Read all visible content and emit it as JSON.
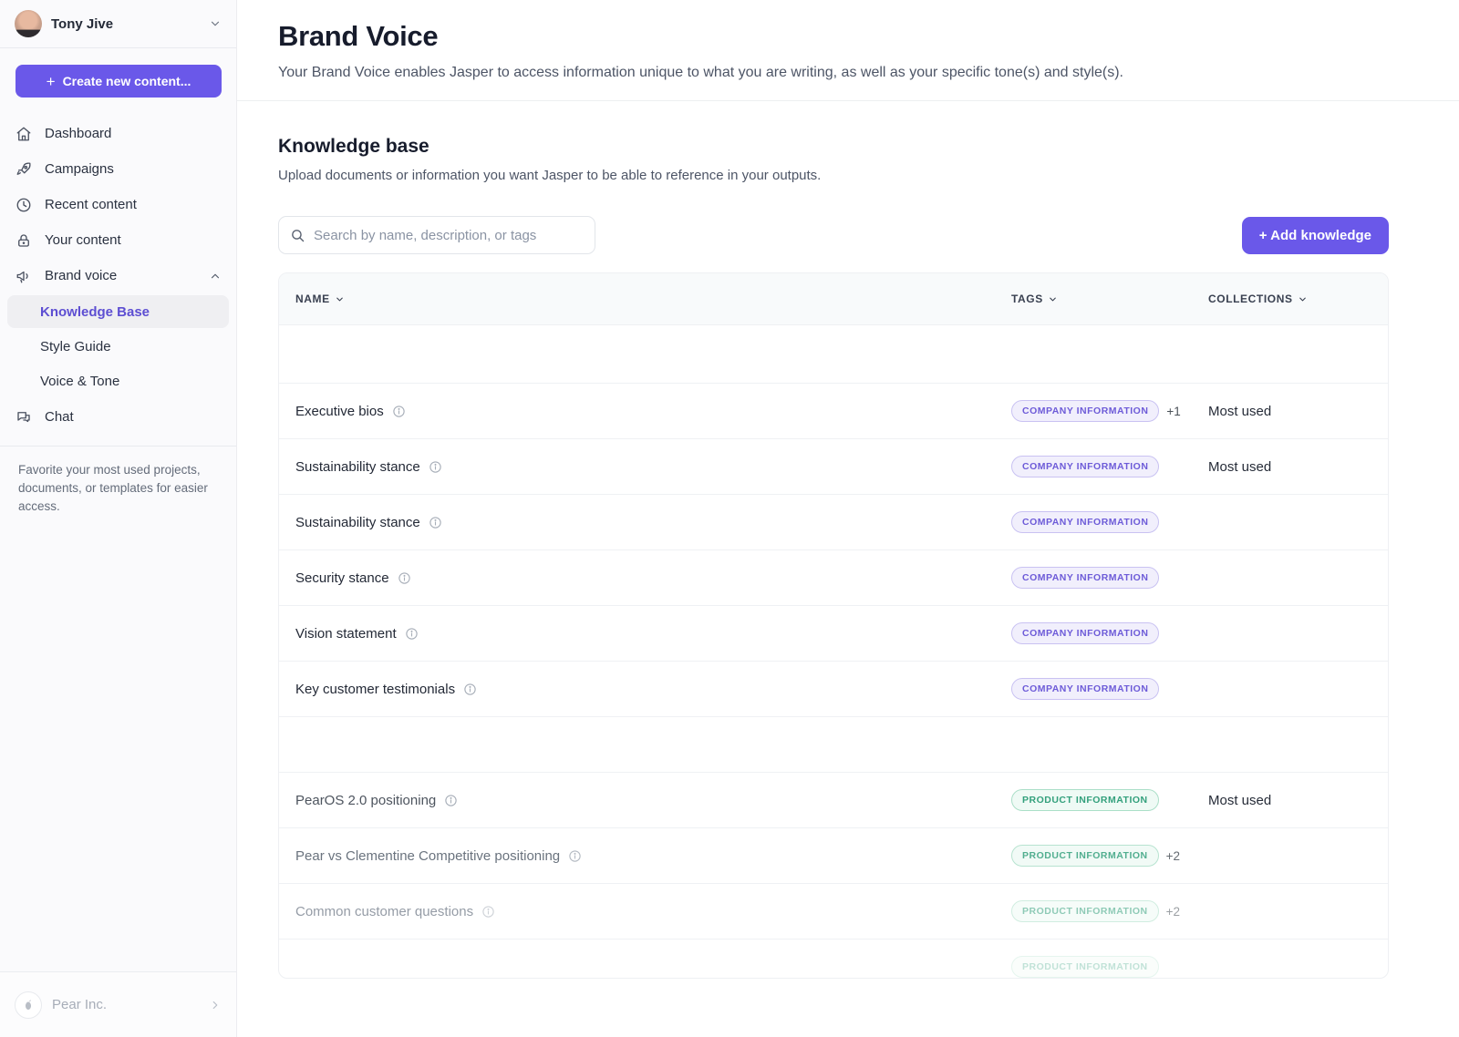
{
  "theme": {
    "accent_purple": "#6a58e9",
    "sidebar_bg": "#fafafc",
    "selected_nav_text": "#5d4ed2",
    "company_tag_color": "#6d5bd8",
    "product_tag_color": "#33a07c"
  },
  "sidebar": {
    "user": {
      "name": "Tony Jive"
    },
    "create_button": {
      "label": "Create new content...",
      "plus": "+"
    },
    "items": [
      {
        "label": "Dashboard",
        "icon": "home-icon"
      },
      {
        "label": "Campaigns",
        "icon": "rocket-icon"
      },
      {
        "label": "Recent content",
        "icon": "clock-icon"
      },
      {
        "label": "Your content",
        "icon": "lock-icon"
      },
      {
        "label": "Brand voice",
        "icon": "megaphone-icon",
        "expanded": true
      }
    ],
    "sub_items": [
      {
        "label": "Knowledge Base",
        "selected": true
      },
      {
        "label": "Style Guide",
        "selected": false
      },
      {
        "label": "Voice & Tone",
        "selected": false
      }
    ],
    "chat_item": {
      "label": "Chat",
      "icon": "chat-icon"
    },
    "hint": "Favorite your most used projects, documents, or templates for easier access.",
    "org": {
      "name": "Pear Inc."
    }
  },
  "page": {
    "title": "Brand Voice",
    "subtitle": "Your Brand Voice enables Jasper to access information unique to what you are writing, as well as your specific tone(s) and style(s)."
  },
  "section": {
    "title": "Knowledge base",
    "subtitle": "Upload documents or information you want Jasper to be able to reference in your outputs."
  },
  "toolbar": {
    "search_placeholder": "Search by name, description, or tags",
    "add_button_label": "+ Add knowledge"
  },
  "table": {
    "headers": {
      "name": "NAME",
      "tags": "TAGS",
      "collections": "COLLECTIONS"
    },
    "rows": [
      {
        "type": "spacer"
      },
      {
        "type": "item",
        "name": "Executive bios",
        "tag": "COMPANY INFORMATION",
        "tag_color": "purple",
        "extra": "+1",
        "collection": "Most used",
        "mute": 0,
        "opacity": 1
      },
      {
        "type": "item",
        "name": "Sustainability stance",
        "tag": "COMPANY INFORMATION",
        "tag_color": "purple",
        "extra": "",
        "collection": "Most used",
        "mute": 0,
        "opacity": 1
      },
      {
        "type": "item",
        "name": "Sustainability stance",
        "tag": "COMPANY INFORMATION",
        "tag_color": "purple",
        "extra": "",
        "collection": "",
        "mute": 0,
        "opacity": 1
      },
      {
        "type": "item",
        "name": "Security stance",
        "tag": "COMPANY INFORMATION",
        "tag_color": "purple",
        "extra": "",
        "collection": "",
        "mute": 0,
        "opacity": 1
      },
      {
        "type": "item",
        "name": "Vision statement",
        "tag": "COMPANY INFORMATION",
        "tag_color": "purple",
        "extra": "",
        "collection": "",
        "mute": 0,
        "opacity": 1
      },
      {
        "type": "item",
        "name": "Key customer testimonials",
        "tag": "COMPANY INFORMATION",
        "tag_color": "purple",
        "extra": "",
        "collection": "",
        "mute": 0,
        "opacity": 1
      },
      {
        "type": "spacer"
      },
      {
        "type": "item",
        "name": "PearOS 2.0 positioning",
        "tag": "PRODUCT INFORMATION",
        "tag_color": "green",
        "extra": "",
        "collection": "Most used",
        "mute": 1,
        "opacity": 1
      },
      {
        "type": "item",
        "name": "Pear vs Clementine Competitive positioning",
        "tag": "PRODUCT INFORMATION",
        "tag_color": "green",
        "extra": "+2",
        "collection": "",
        "mute": 2,
        "opacity": 0.85
      },
      {
        "type": "item",
        "name": "Common customer questions",
        "tag": "PRODUCT INFORMATION",
        "tag_color": "green",
        "extra": "+2",
        "collection": "",
        "mute": 3,
        "opacity": 0.55
      },
      {
        "type": "item",
        "name": "",
        "tag": "PRODUCT INFORMATION",
        "tag_color": "green",
        "extra": "",
        "collection": "",
        "mute": 3,
        "opacity": 0.3
      }
    ]
  }
}
